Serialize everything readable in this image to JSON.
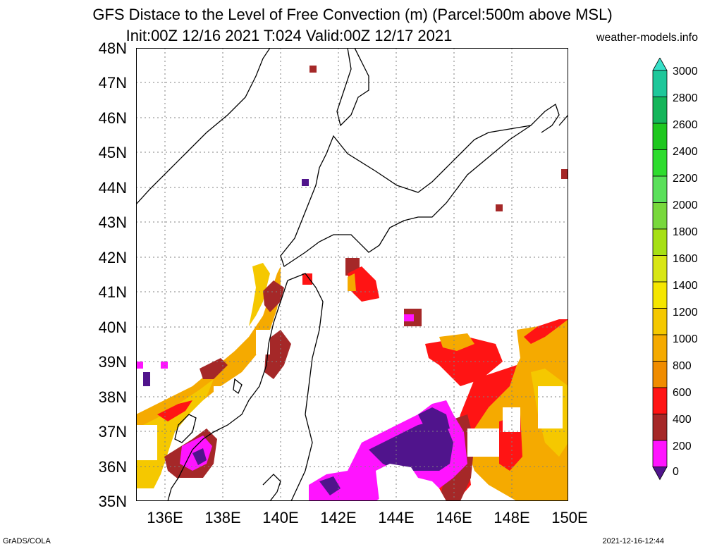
{
  "title": {
    "line1": "GFS Distace to the Level of Free Convection (m) (Parcel:500m above MSL)",
    "line2": "Init:00Z 12/16 2021 T:024 Valid:00Z 12/17 2021",
    "site": "weather-models.info"
  },
  "axes": {
    "lat_labels": [
      "48N",
      "47N",
      "46N",
      "45N",
      "44N",
      "43N",
      "42N",
      "41N",
      "40N",
      "39N",
      "38N",
      "37N",
      "36N",
      "35N"
    ],
    "lon_labels": [
      "136E",
      "138E",
      "140E",
      "142E",
      "144E",
      "146E",
      "148E",
      "150E"
    ]
  },
  "colorbar": {
    "labels": [
      "3000",
      "2800",
      "2600",
      "2400",
      "2200",
      "2000",
      "1800",
      "1600",
      "1400",
      "1200",
      "1000",
      "800",
      "600",
      "400",
      "200",
      "0"
    ],
    "colors": [
      "#36e0c8",
      "#1ec79a",
      "#14b55a",
      "#1ec71e",
      "#2edc2e",
      "#5ae05a",
      "#78d83c",
      "#a6e014",
      "#d8e614",
      "#f5e600",
      "#f5c800",
      "#f5aa00",
      "#f08c00",
      "#ff1414",
      "#a52828",
      "#ff14ff",
      "#50148c"
    ]
  },
  "footer": {
    "left": "GrADS/COLA",
    "right": "2021-12-16-12:44"
  }
}
